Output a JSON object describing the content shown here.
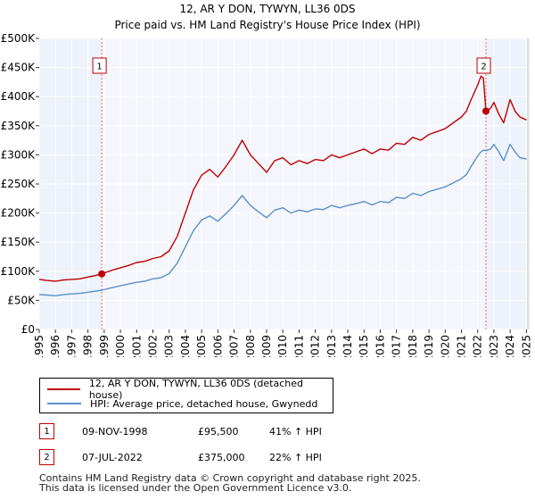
{
  "chart_data": {
    "type": "line",
    "title": "12, AR Y DON, TYWYN, LL36 0DS",
    "subtitle": "Price paid vs. HM Land Registry's House Price Index (HPI)",
    "xlim": [
      1995,
      2025.2
    ],
    "ylim": [
      0,
      500000
    ],
    "x_ticks": [
      1995,
      1996,
      1997,
      1998,
      1999,
      2000,
      2001,
      2002,
      2003,
      2004,
      2005,
      2006,
      2007,
      2008,
      2009,
      2010,
      2011,
      2012,
      2013,
      2014,
      2015,
      2016,
      2017,
      2018,
      2019,
      2020,
      2021,
      2022,
      2023,
      2024,
      2025
    ],
    "x_tick_labels": [
      "1995",
      "1996",
      "1997",
      "1998",
      "1999",
      "2000",
      "2001",
      "2002",
      "2003",
      "2004",
      "2005",
      "2006",
      "2007",
      "2008",
      "2009",
      "2010",
      "2011",
      "2012",
      "2013",
      "2014",
      "2015",
      "2016",
      "2017",
      "2018",
      "2019",
      "2020",
      "2021",
      "2022",
      "2023",
      "2024",
      "2025"
    ],
    "y_ticks": [
      0,
      50000,
      100000,
      150000,
      200000,
      250000,
      300000,
      350000,
      400000,
      450000,
      500000
    ],
    "y_tick_labels": [
      "£0",
      "£50K",
      "£100K",
      "£150K",
      "£200K",
      "£250K",
      "£300K",
      "£350K",
      "£400K",
      "£450K",
      "£500K"
    ],
    "series": [
      {
        "name": "12, AR Y DON, TYWYN, LL36 0DS (detached house)",
        "color": "#c00000",
        "x": [
          1995.0,
          1995.5,
          1996.0,
          1996.5,
          1997.0,
          1997.5,
          1998.0,
          1998.5,
          1998.85,
          1999.5,
          2000.0,
          2000.5,
          2001.0,
          2001.5,
          2002.0,
          2002.5,
          2003.0,
          2003.5,
          2004.0,
          2004.5,
          2005.0,
          2005.5,
          2006.0,
          2006.5,
          2007.0,
          2007.5,
          2008.0,
          2008.5,
          2009.0,
          2009.5,
          2010.0,
          2010.5,
          2011.0,
          2011.5,
          2012.0,
          2012.5,
          2013.0,
          2013.5,
          2014.0,
          2014.5,
          2015.0,
          2015.5,
          2016.0,
          2016.5,
          2017.0,
          2017.5,
          2018.0,
          2018.5,
          2019.0,
          2019.5,
          2020.0,
          2020.5,
          2021.0,
          2021.3,
          2021.6,
          2022.0,
          2022.2,
          2022.35,
          2022.51,
          2022.8,
          2023.0,
          2023.3,
          2023.6,
          2024.0,
          2024.3,
          2024.6,
          2025.0
        ],
        "values": [
          86000,
          84000,
          83000,
          85000,
          86000,
          87000,
          90000,
          93000,
          95500,
          102000,
          106000,
          110000,
          115000,
          117000,
          122000,
          125000,
          135000,
          160000,
          200000,
          240000,
          265000,
          275000,
          262000,
          280000,
          300000,
          325000,
          300000,
          285000,
          270000,
          290000,
          295000,
          283000,
          290000,
          285000,
          292000,
          290000,
          300000,
          295000,
          300000,
          305000,
          310000,
          302000,
          310000,
          308000,
          320000,
          318000,
          330000,
          325000,
          335000,
          340000,
          345000,
          355000,
          365000,
          375000,
          395000,
          420000,
          435000,
          432000,
          375000,
          380000,
          390000,
          370000,
          355000,
          395000,
          375000,
          365000,
          360000
        ]
      },
      {
        "name": "HPI: Average price, detached house, Gwynedd",
        "color": "#5b8fc9",
        "x": [
          1995.0,
          1995.5,
          1996.0,
          1996.5,
          1997.0,
          1997.5,
          1998.0,
          1998.5,
          1998.85,
          1999.5,
          2000.0,
          2000.5,
          2001.0,
          2001.5,
          2002.0,
          2002.5,
          2003.0,
          2003.5,
          2004.0,
          2004.5,
          2005.0,
          2005.5,
          2006.0,
          2006.5,
          2007.0,
          2007.5,
          2008.0,
          2008.5,
          2009.0,
          2009.5,
          2010.0,
          2010.5,
          2011.0,
          2011.5,
          2012.0,
          2012.5,
          2013.0,
          2013.5,
          2014.0,
          2014.5,
          2015.0,
          2015.5,
          2016.0,
          2016.5,
          2017.0,
          2017.5,
          2018.0,
          2018.5,
          2019.0,
          2019.5,
          2020.0,
          2020.5,
          2021.0,
          2021.3,
          2021.6,
          2022.0,
          2022.2,
          2022.35,
          2022.51,
          2022.8,
          2023.0,
          2023.3,
          2023.6,
          2024.0,
          2024.3,
          2024.6,
          2025.0
        ],
        "values": [
          60000,
          59000,
          58000,
          60000,
          61000,
          62000,
          64000,
          66000,
          67500,
          72000,
          75000,
          78000,
          81000,
          83000,
          87000,
          89000,
          96000,
          114000,
          142000,
          170000,
          188000,
          195000,
          186000,
          199000,
          213000,
          230000,
          213000,
          202000,
          192000,
          205000,
          209000,
          200000,
          205000,
          202000,
          207000,
          206000,
          213000,
          209000,
          213000,
          216000,
          220000,
          214000,
          220000,
          218000,
          227000,
          225000,
          234000,
          230000,
          237000,
          241000,
          245000,
          252000,
          259000,
          266000,
          280000,
          298000,
          305000,
          308000,
          307000,
          310000,
          318000,
          305000,
          290000,
          318000,
          305000,
          295000,
          293000
        ]
      }
    ],
    "annotations": [
      {
        "label": "1",
        "x": 1998.85,
        "y": 95500
      },
      {
        "label": "2",
        "x": 2022.51,
        "y": 375000
      }
    ]
  },
  "legend": {
    "items": [
      {
        "label": "12, AR Y DON, TYWYN, LL36 0DS (detached house)",
        "color": "#c00000"
      },
      {
        "label": "HPI: Average price, detached house, Gwynedd",
        "color": "#5b8fc9"
      }
    ]
  },
  "transactions": [
    {
      "marker": "1",
      "date": "09-NOV-1998",
      "price": "£95,500",
      "hpi": "41% ↑ HPI"
    },
    {
      "marker": "2",
      "date": "07-JUL-2022",
      "price": "£375,000",
      "hpi": "22% ↑ HPI"
    }
  ],
  "footer": {
    "line1": "Contains HM Land Registry data © Crown copyright and database right 2025.",
    "line2": "This data is licensed under the Open Government Licence v3.0."
  }
}
